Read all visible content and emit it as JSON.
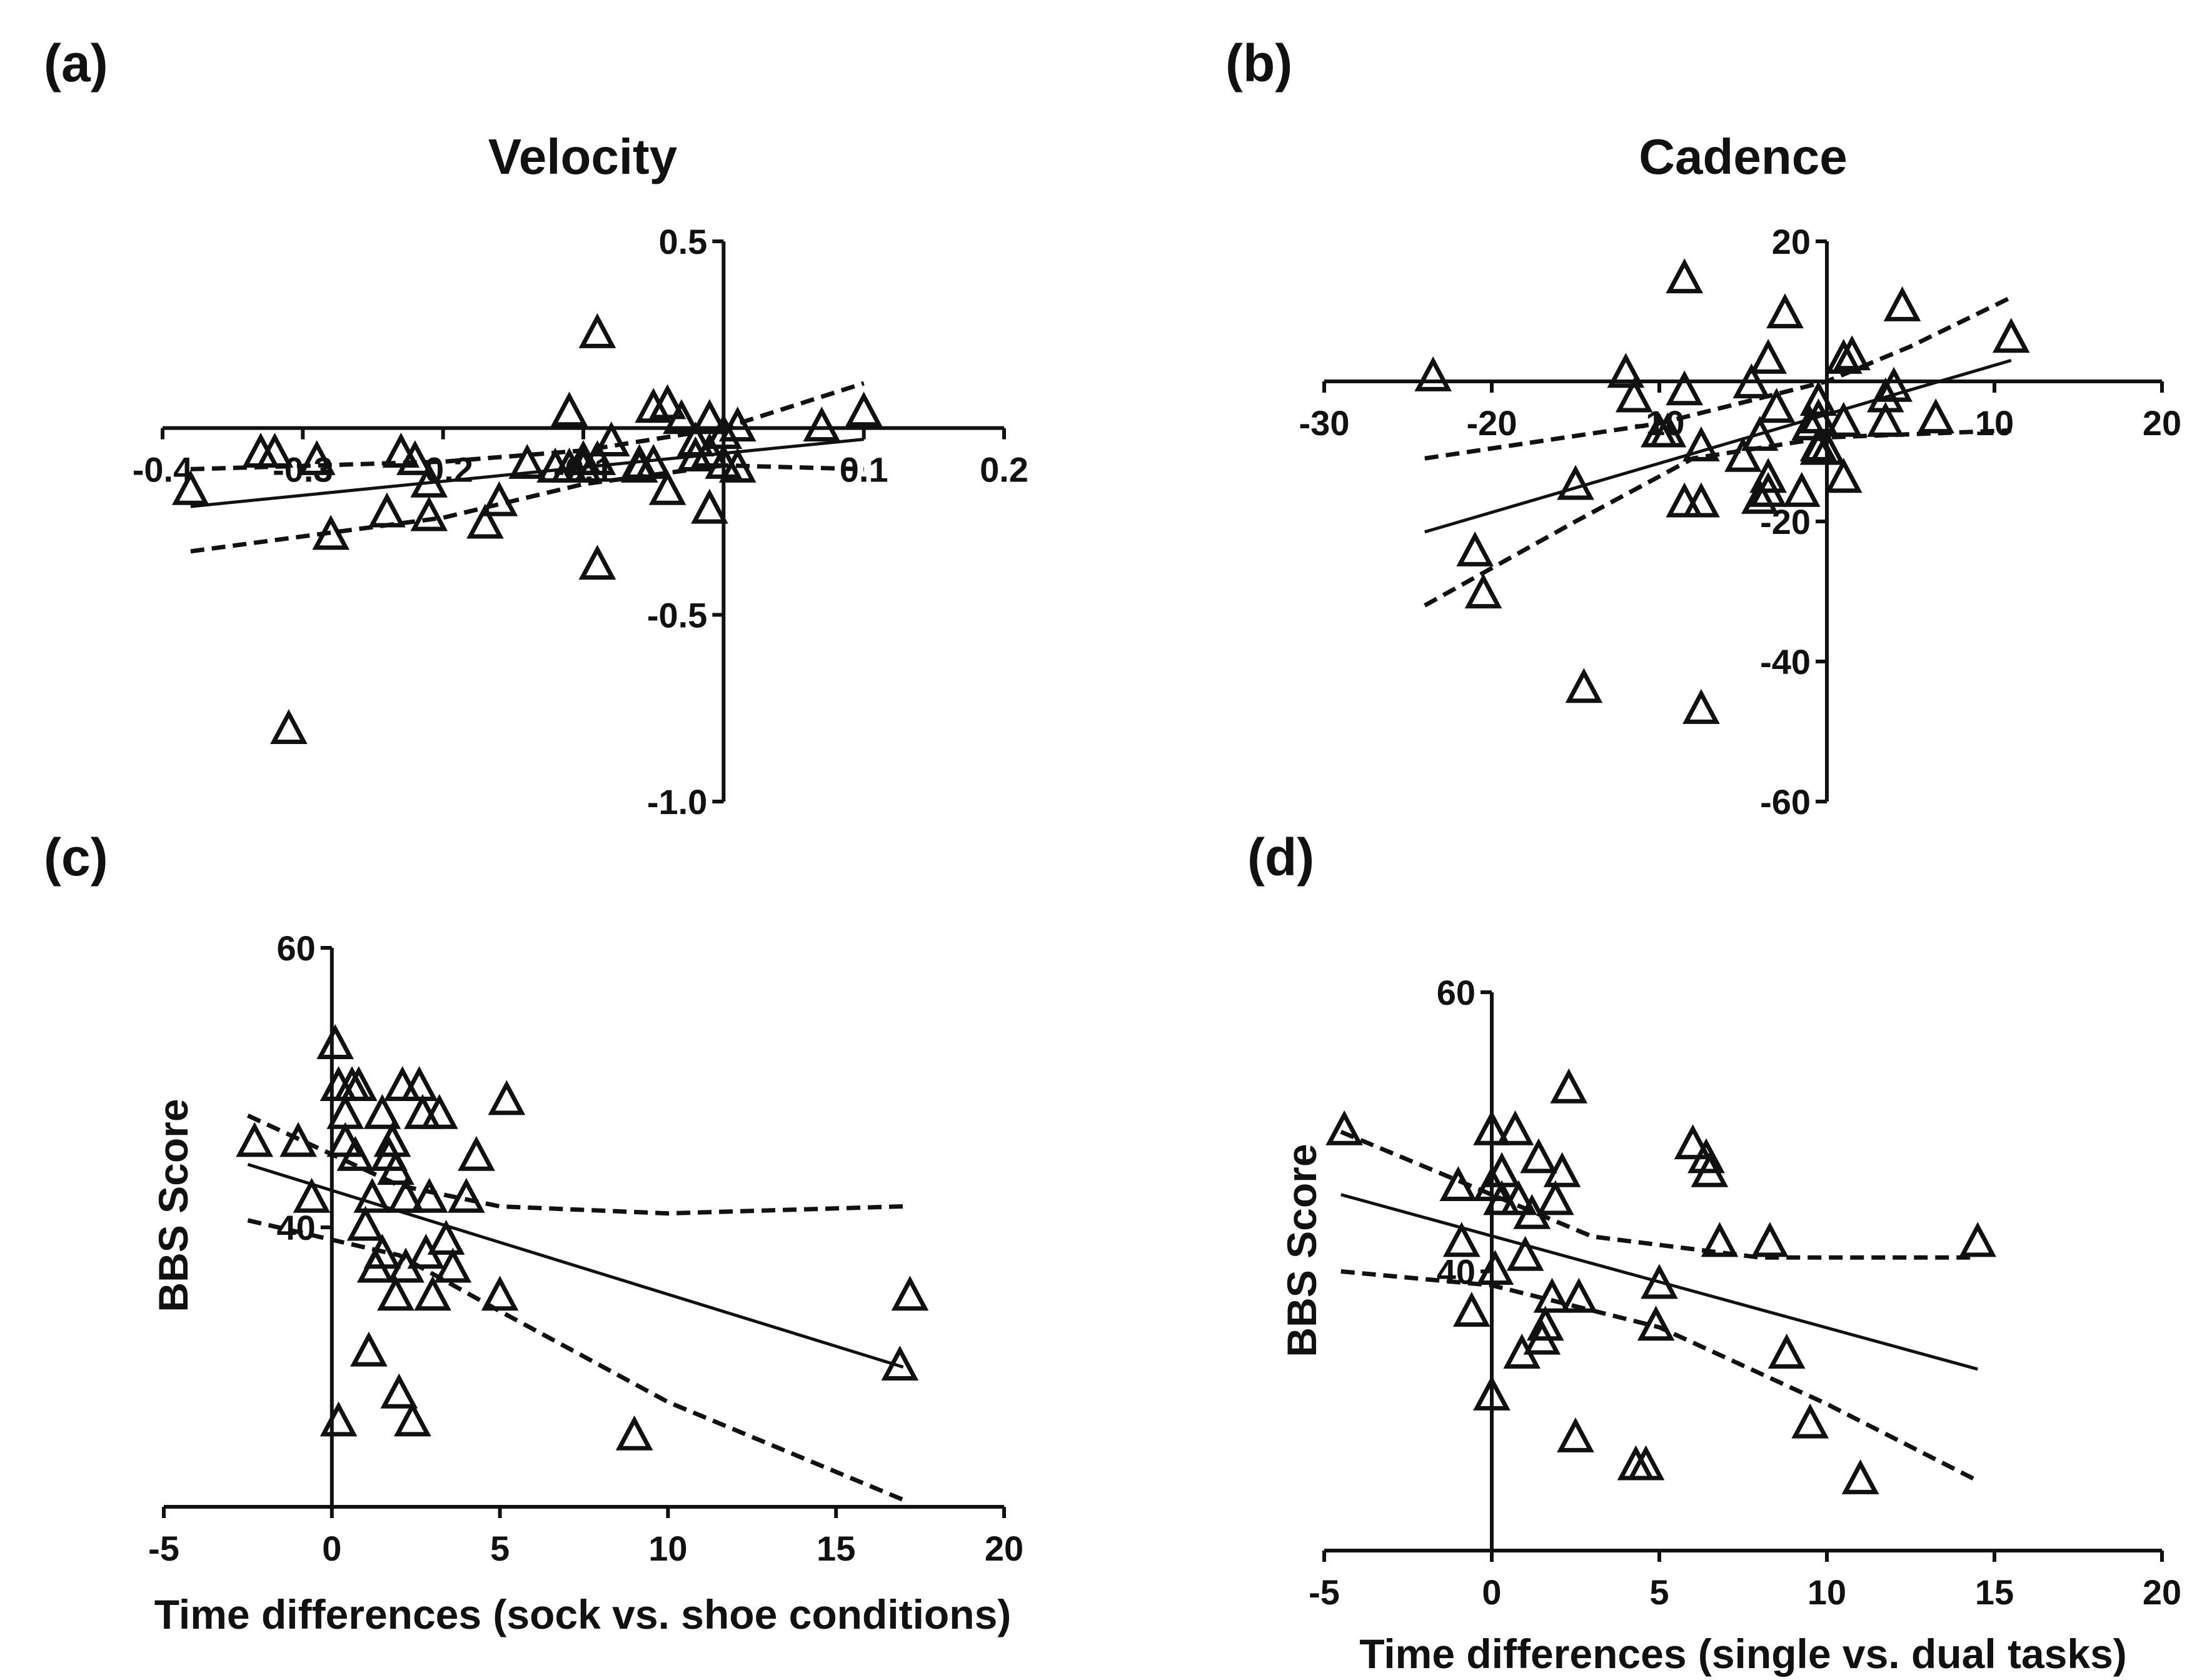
{
  "chart_data": [
    {
      "type": "scatter",
      "panel_label": "(a)",
      "title": "Velocity",
      "xlabel": "",
      "ylabel": "",
      "xlim": [
        -0.4,
        0.2
      ],
      "ylim": [
        -1.0,
        0.5
      ],
      "x_ticks": [
        "-0.4",
        "-0.3",
        "-0.2",
        "-0.1",
        "0.1",
        "0.2"
      ],
      "y_ticks": [
        "0.5",
        "-0.5",
        "-1.0"
      ],
      "x_tick_values": [
        -0.4,
        -0.3,
        -0.2,
        -0.1,
        0.1,
        0.2
      ],
      "y_tick_values": [
        0.5,
        -0.5,
        -1.0
      ],
      "points": [
        [
          -0.38,
          -0.17
        ],
        [
          -0.33,
          -0.07
        ],
        [
          -0.32,
          -0.07
        ],
        [
          -0.29,
          -0.09
        ],
        [
          -0.28,
          -0.29
        ],
        [
          -0.31,
          -0.81
        ],
        [
          -0.23,
          -0.07
        ],
        [
          -0.22,
          -0.09
        ],
        [
          -0.21,
          -0.15
        ],
        [
          -0.24,
          -0.23
        ],
        [
          -0.21,
          -0.24
        ],
        [
          -0.17,
          -0.26
        ],
        [
          -0.16,
          -0.2
        ],
        [
          -0.14,
          -0.1
        ],
        [
          -0.12,
          -0.11
        ],
        [
          -0.11,
          0.04
        ],
        [
          -0.1,
          -0.09
        ],
        [
          -0.1,
          -0.11
        ],
        [
          -0.11,
          -0.11
        ],
        [
          -0.09,
          -0.09
        ],
        [
          -0.08,
          -0.04
        ],
        [
          -0.06,
          -0.1
        ],
        [
          -0.05,
          -0.1
        ],
        [
          -0.06,
          -0.11
        ],
        [
          -0.05,
          0.05
        ],
        [
          -0.04,
          0.06
        ],
        [
          -0.03,
          0.02
        ],
        [
          -0.02,
          -0.08
        ],
        [
          -0.02,
          -0.04
        ],
        [
          -0.04,
          -0.17
        ],
        [
          -0.01,
          0.02
        ],
        [
          -0.01,
          -0.07
        ],
        [
          0.0,
          -0.02
        ],
        [
          0.01,
          0.0
        ],
        [
          0.0,
          -0.1
        ],
        [
          -0.01,
          -0.22
        ],
        [
          0.01,
          -0.11
        ],
        [
          0.07,
          -0.0
        ],
        [
          0.1,
          0.04
        ],
        [
          -0.09,
          -0.37
        ],
        [
          -0.09,
          0.25
        ]
      ],
      "fit_line": [
        [
          -0.38,
          -0.21
        ],
        [
          0.1,
          -0.03
        ]
      ],
      "ci_upper": [
        [
          -0.38,
          -0.11
        ],
        [
          -0.2,
          -0.09
        ],
        [
          -0.1,
          -0.06
        ],
        [
          0.0,
          0.0
        ],
        [
          0.1,
          0.12
        ]
      ],
      "ci_lower": [
        [
          -0.38,
          -0.33
        ],
        [
          -0.2,
          -0.24
        ],
        [
          -0.1,
          -0.15
        ],
        [
          0.0,
          -0.1
        ],
        [
          0.1,
          -0.11
        ]
      ]
    },
    {
      "type": "scatter",
      "panel_label": "(b)",
      "title": "Cadence",
      "xlabel": "",
      "ylabel": "",
      "xlim": [
        -30,
        20
      ],
      "ylim": [
        -60,
        20
      ],
      "x_ticks": [
        "-30",
        "-20",
        "-10",
        "10",
        "20"
      ],
      "y_ticks": [
        "20",
        "-20",
        "-40",
        "-60"
      ],
      "x_tick_values": [
        -30,
        -20,
        -10,
        10,
        20
      ],
      "y_tick_values": [
        20,
        -20,
        -40,
        -60
      ],
      "points": [
        [
          -23.5,
          0.5
        ],
        [
          -21.0,
          -24.5
        ],
        [
          -20.5,
          -30.5
        ],
        [
          -15,
          -15
        ],
        [
          -14.5,
          -44
        ],
        [
          -12,
          1
        ],
        [
          -11.5,
          -2.5
        ],
        [
          -10,
          -7.5
        ],
        [
          -9.5,
          -7.5
        ],
        [
          -8.5,
          -1.5
        ],
        [
          -8.5,
          -17.5
        ],
        [
          -7.5,
          -17.5
        ],
        [
          -8.5,
          14.5
        ],
        [
          -7.5,
          -9.5
        ],
        [
          -7.5,
          -47
        ],
        [
          -5,
          -11
        ],
        [
          -4.5,
          -0.5
        ],
        [
          -4,
          -8
        ],
        [
          -4,
          -17
        ],
        [
          -3.5,
          -14
        ],
        [
          -3.5,
          -16
        ],
        [
          -3.5,
          3
        ],
        [
          -3,
          -4
        ],
        [
          -2.5,
          9.5
        ],
        [
          -1.5,
          -16
        ],
        [
          -1,
          -6.5
        ],
        [
          -0.5,
          -5.5
        ],
        [
          -0.5,
          -3
        ],
        [
          -0.5,
          -9.5
        ],
        [
          -0.5,
          -10
        ],
        [
          0,
          -10
        ],
        [
          1,
          -6
        ],
        [
          1,
          -14
        ],
        [
          1,
          3
        ],
        [
          1.5,
          3.5
        ],
        [
          3.5,
          -6
        ],
        [
          3.5,
          -2.5
        ],
        [
          4,
          -1
        ],
        [
          4.5,
          10.5
        ],
        [
          6.5,
          -5.5
        ],
        [
          11,
          6
        ]
      ],
      "fit_line": [
        [
          -24,
          -21.5
        ],
        [
          11,
          3
        ]
      ],
      "ci_upper": [
        [
          -24,
          -11
        ],
        [
          -10,
          -6
        ],
        [
          0,
          0
        ],
        [
          5,
          5
        ],
        [
          11,
          12
        ]
      ],
      "ci_lower": [
        [
          -24,
          -32
        ],
        [
          -15,
          -20
        ],
        [
          -8,
          -11
        ],
        [
          0,
          -8
        ],
        [
          11,
          -7
        ]
      ]
    },
    {
      "type": "scatter",
      "panel_label": "(c)",
      "title": "",
      "xlabel": "Time differences (sock vs. shoe conditions)",
      "ylabel": "BBS Score",
      "xlim": [
        -5,
        20
      ],
      "ylim": [
        20,
        60
      ],
      "x_ticks": [
        "-5",
        "0",
        "5",
        "10",
        "15",
        "20"
      ],
      "y_ticks": [
        "60",
        "40"
      ],
      "x_tick_values": [
        -5,
        0,
        5,
        10,
        15,
        20
      ],
      "y_tick_values": [
        60,
        40
      ],
      "points": [
        [
          -2.3,
          46
        ],
        [
          -1,
          46
        ],
        [
          -0.6,
          42
        ],
        [
          0.1,
          53
        ],
        [
          0.2,
          50
        ],
        [
          0.6,
          50
        ],
        [
          0.4,
          48
        ],
        [
          0.7,
          45
        ],
        [
          0.4,
          46
        ],
        [
          0.8,
          50
        ],
        [
          1,
          40
        ],
        [
          1.2,
          42
        ],
        [
          1.3,
          37
        ],
        [
          1.5,
          38
        ],
        [
          1.5,
          48
        ],
        [
          1.7,
          45
        ],
        [
          1.8,
          46
        ],
        [
          1.9,
          44
        ],
        [
          2.1,
          50
        ],
        [
          2.2,
          42
        ],
        [
          2.2,
          37
        ],
        [
          2.7,
          48
        ],
        [
          2.6,
          50
        ],
        [
          2.8,
          38
        ],
        [
          2.9,
          42
        ],
        [
          3,
          35
        ],
        [
          3.2,
          48
        ],
        [
          3.4,
          39
        ],
        [
          3.6,
          37
        ],
        [
          4,
          42
        ],
        [
          4.3,
          45
        ],
        [
          5,
          35
        ],
        [
          5.2,
          49
        ],
        [
          1.1,
          31
        ],
        [
          2,
          28
        ],
        [
          2.4,
          26
        ],
        [
          0.2,
          26
        ],
        [
          1.9,
          35
        ],
        [
          9,
          25
        ],
        [
          17.2,
          35
        ],
        [
          16.9,
          30
        ]
      ],
      "fit_line": [
        [
          -2.5,
          44.5
        ],
        [
          17,
          30
        ]
      ],
      "ci_upper": [
        [
          -2.5,
          48
        ],
        [
          2,
          43
        ],
        [
          5,
          41.5
        ],
        [
          10,
          41
        ],
        [
          17,
          41.5
        ]
      ],
      "ci_lower": [
        [
          -2.5,
          40.5
        ],
        [
          2,
          38
        ],
        [
          5,
          34
        ],
        [
          10,
          27.5
        ],
        [
          17,
          20.5
        ]
      ]
    },
    {
      "type": "scatter",
      "panel_label": "(d)",
      "title": "",
      "xlabel": "Time differences (single vs. dual tasks)",
      "ylabel": "BBS Score",
      "xlim": [
        -5,
        20
      ],
      "ylim": [
        20,
        60
      ],
      "x_ticks": [
        "-5",
        "0",
        "5",
        "10",
        "15",
        "20"
      ],
      "y_ticks": [
        "60",
        "40"
      ],
      "x_tick_values": [
        -5,
        0,
        5,
        10,
        15,
        20
      ],
      "y_tick_values": [
        60,
        40
      ],
      "points": [
        [
          -4.4,
          50
        ],
        [
          -1,
          46
        ],
        [
          -0.9,
          42
        ],
        [
          -0.6,
          37
        ],
        [
          0,
          50
        ],
        [
          0,
          46
        ],
        [
          0.3,
          47
        ],
        [
          0.1,
          40
        ],
        [
          0.3,
          45
        ],
        [
          0.7,
          50
        ],
        [
          0.8,
          45
        ],
        [
          1,
          41
        ],
        [
          0.9,
          34
        ],
        [
          1.2,
          44
        ],
        [
          1.4,
          48
        ],
        [
          1.5,
          35
        ],
        [
          1.6,
          36
        ],
        [
          1.8,
          38
        ],
        [
          1.9,
          45
        ],
        [
          2.1,
          47
        ],
        [
          2.3,
          53
        ],
        [
          2.6,
          38
        ],
        [
          0,
          31
        ],
        [
          2.5,
          28
        ],
        [
          4.3,
          26
        ],
        [
          4.6,
          26
        ],
        [
          5,
          39
        ],
        [
          4.9,
          36
        ],
        [
          6,
          49
        ],
        [
          6.4,
          48
        ],
        [
          6.5,
          47
        ],
        [
          6.8,
          42
        ],
        [
          8.3,
          42
        ],
        [
          8.8,
          34
        ],
        [
          9.5,
          29
        ],
        [
          11,
          25
        ],
        [
          14.5,
          42
        ]
      ],
      "fit_line": [
        [
          -4.5,
          45.5
        ],
        [
          14.5,
          33
        ]
      ],
      "ci_upper": [
        [
          -4.5,
          50
        ],
        [
          0,
          45.5
        ],
        [
          3,
          42.5
        ],
        [
          8,
          41
        ],
        [
          14.5,
          41
        ]
      ],
      "ci_lower": [
        [
          -4.5,
          40
        ],
        [
          0,
          39
        ],
        [
          5,
          36
        ],
        [
          10,
          30.5
        ],
        [
          14.5,
          25
        ]
      ]
    }
  ]
}
